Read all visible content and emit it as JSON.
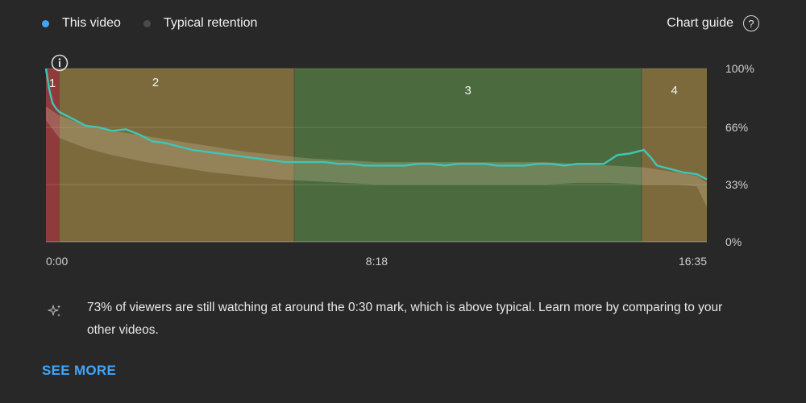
{
  "legend": {
    "this_video_label": "This video",
    "typical_label": "Typical retention"
  },
  "chart_guide": {
    "label": "Chart guide",
    "icon": "help-circle-icon"
  },
  "chart_data": {
    "type": "area",
    "x_unit": "seconds",
    "xlim": [
      0,
      995
    ],
    "ylim": [
      0,
      100
    ],
    "x_ticks": [
      {
        "value": 0,
        "label": "0:00"
      },
      {
        "value": 498,
        "label": "8:18"
      },
      {
        "value": 995,
        "label": "16:35"
      }
    ],
    "y_ticks": [
      {
        "value": 100,
        "label": "100%"
      },
      {
        "value": 66,
        "label": "66%"
      },
      {
        "value": 33,
        "label": "33%"
      },
      {
        "value": 0,
        "label": "0%"
      }
    ],
    "grid": true,
    "segments": [
      {
        "label": "1",
        "start": 0,
        "end": 20,
        "color": "#8f3b3b"
      },
      {
        "label": "2",
        "start": 20,
        "end": 374,
        "color": "#7d6a3c"
      },
      {
        "label": "3",
        "start": 374,
        "end": 897,
        "color": "#4b6b3e"
      },
      {
        "label": "4",
        "start": 897,
        "end": 995,
        "color": "#7d6a3c"
      }
    ],
    "series": [
      {
        "key": "this_video",
        "color": "#3fc6b6",
        "x": [
          0,
          5,
          10,
          15,
          20,
          30,
          40,
          60,
          80,
          100,
          120,
          140,
          160,
          180,
          200,
          220,
          240,
          260,
          280,
          300,
          320,
          340,
          360,
          380,
          400,
          420,
          440,
          460,
          480,
          500,
          520,
          540,
          560,
          580,
          600,
          620,
          640,
          660,
          680,
          700,
          720,
          740,
          760,
          780,
          800,
          820,
          840,
          860,
          880,
          890,
          900,
          910,
          920,
          940,
          960,
          980,
          995
        ],
        "values": [
          100,
          88,
          80,
          77,
          75,
          73,
          71,
          67,
          66,
          64,
          65,
          62,
          58,
          57,
          55,
          53,
          52,
          51,
          50,
          49,
          48,
          47,
          46,
          46,
          46,
          46,
          45,
          45,
          44,
          44,
          44,
          44,
          45,
          45,
          44,
          45,
          45,
          45,
          44,
          44,
          44,
          45,
          45,
          44,
          45,
          45,
          45,
          50,
          51,
          52,
          53,
          49,
          44,
          42,
          40,
          39,
          36
        ]
      },
      {
        "key": "typical",
        "band_color": "#cfc3a0",
        "x": [
          0,
          20,
          60,
          100,
          150,
          200,
          250,
          300,
          350,
          400,
          450,
          500,
          550,
          600,
          650,
          700,
          750,
          800,
          850,
          900,
          950,
          980,
          995
        ],
        "upper": [
          78,
          73,
          67,
          64,
          61,
          58,
          55,
          52,
          50,
          48,
          47,
          46,
          46,
          46,
          46,
          46,
          46,
          45,
          44,
          43,
          40,
          38,
          34
        ],
        "lower": [
          70,
          60,
          54,
          50,
          46,
          43,
          40,
          38,
          36,
          35,
          34,
          33,
          33,
          33,
          33,
          33,
          33,
          34,
          34,
          33,
          33,
          32,
          20
        ]
      }
    ]
  },
  "insight": {
    "icon": "sparkle-icon",
    "text": "73% of viewers are still watching at around the 0:30 mark, which is above typical. Learn more by comparing to your other videos."
  },
  "see_more_label": "SEE MORE",
  "colors": {
    "background": "#282828",
    "this_video": "#3fc6b6",
    "this_video_dot": "#3ea6ff",
    "typical_dot": "#4a4a4a",
    "link": "#3ea6ff"
  }
}
